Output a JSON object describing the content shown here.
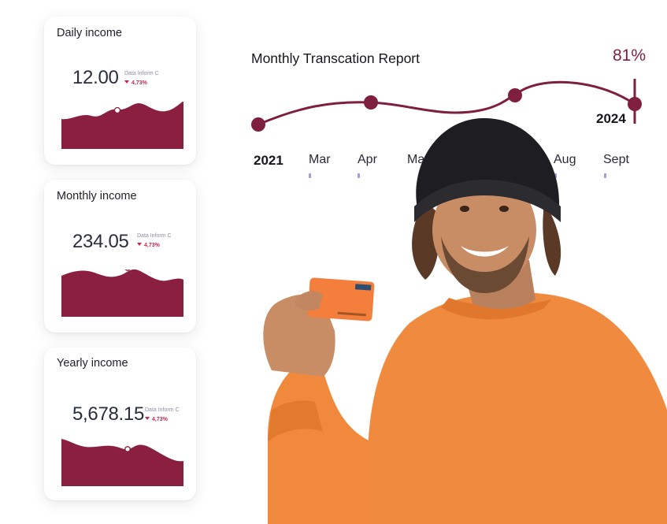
{
  "cards": [
    {
      "title": "Daily income",
      "value": "12.00",
      "source": "Data Inform C",
      "change": "4,73%"
    },
    {
      "title": "Monthly income",
      "value": "234.05",
      "source": "Data Inform C",
      "change": "4,73%"
    },
    {
      "title": "Yearly income",
      "value": "5,678.15",
      "source": "Data Inform C",
      "change": "4,73%"
    }
  ],
  "report": {
    "title": "Monthly Transcation Report",
    "percent": "81%",
    "year_start": "2021",
    "year_end": "2024",
    "months": [
      "Mar",
      "Apr",
      "Ma",
      "Aug",
      "Sept"
    ]
  },
  "colors": {
    "accent": "#7e1f40",
    "wave_fill": "#8a1f40",
    "change_negative": "#c0294f",
    "tick": "#a79bdb",
    "sweater": "#f08a3e",
    "beanie": "#1e1e22",
    "card": "#f47f3c"
  },
  "icons": {
    "change_indicator": "triangle-down-icon"
  }
}
